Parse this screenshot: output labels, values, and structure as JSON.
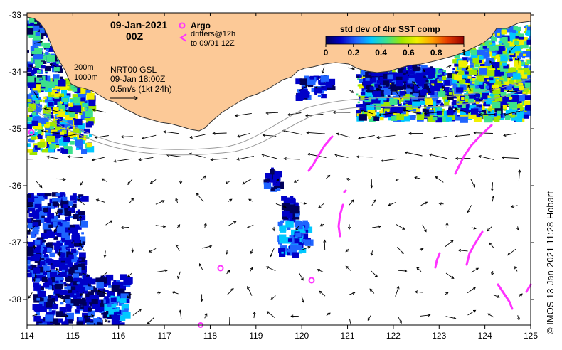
{
  "title": {
    "date": "09-Jan-2021",
    "time": "00Z"
  },
  "legend": {
    "argo_label": "Argo",
    "drifters_line1": "drifters@12h",
    "drifters_line2": "to 09/01 12Z",
    "argo_color": "#ff33ff",
    "drifter_color": "#ff33ff"
  },
  "info": {
    "iso1": "200m",
    "iso2": "1000m",
    "product": "NRT00 GSL",
    "valid": "09-Jan 18:00Z",
    "scale": "0.5m/s (1kt 24h)"
  },
  "colorbar": {
    "title": "std dev of 4hr SST comp",
    "ticks": [
      "0",
      "0.2",
      "0.4",
      "0.6",
      "0.8",
      "1"
    ],
    "colors": [
      "#00005a",
      "#0000c8",
      "#1e64ff",
      "#00c8ff",
      "#3ce18c",
      "#a0e600",
      "#f0f000",
      "#ffa000",
      "#e63c00",
      "#960000"
    ]
  },
  "axes": {
    "x_ticks": [
      "114",
      "115",
      "116",
      "117",
      "118",
      "119",
      "120",
      "121",
      "122",
      "123",
      "124",
      "125"
    ],
    "y_ticks": [
      "-33",
      "-34",
      "-35",
      "-36",
      "-37",
      "-38"
    ]
  },
  "credit": "© IMOS 13-Jan-2021 11:28 Hobart",
  "colors": {
    "land": "#fcc997",
    "ocean": "#ffffff",
    "coast": "#333333"
  }
}
